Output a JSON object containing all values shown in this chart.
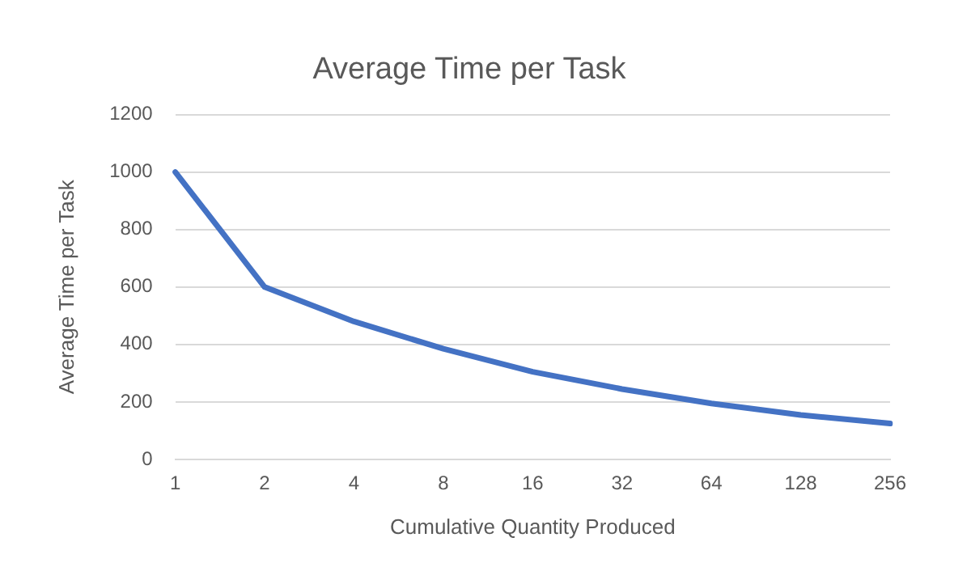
{
  "chart_data": {
    "type": "line",
    "title": "Average Time per Task",
    "xlabel": "Cumulative Quantity Produced",
    "ylabel": "Average Time per Task",
    "categories": [
      "1",
      "2",
      "4",
      "8",
      "16",
      "32",
      "64",
      "128",
      "256"
    ],
    "series": [
      {
        "color": "#4472c4",
        "values": [
          1000,
          600,
          480,
          385,
          305,
          245,
          195,
          155,
          125
        ]
      }
    ],
    "ylim": [
      0,
      1200
    ],
    "yticks": [
      0,
      200,
      400,
      600,
      800,
      1000,
      1200
    ],
    "grid": "y",
    "legend": false,
    "marker": "none"
  }
}
